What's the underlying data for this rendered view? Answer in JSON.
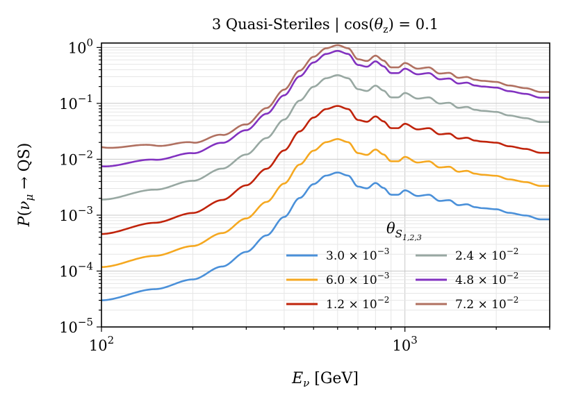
{
  "chart_data": {
    "type": "line",
    "title": "3 Quasi-Steriles | cos(θ_z) = 0.1",
    "xlabel": "E_ν [GeV]",
    "ylabel": "P(ν_μ → QS)",
    "xscale": "log",
    "yscale": "log",
    "xlim": [
      100,
      3000
    ],
    "ylim": [
      1e-05,
      1.2
    ],
    "x_ticks": [
      {
        "value": 100,
        "base": "10",
        "exp": "2"
      },
      {
        "value": 1000,
        "base": "10",
        "exp": "3"
      }
    ],
    "y_ticks": [
      {
        "value": 1e-05,
        "base": "10",
        "exp": "−5"
      },
      {
        "value": 0.0001,
        "base": "10",
        "exp": "−4"
      },
      {
        "value": 0.001,
        "base": "10",
        "exp": "−3"
      },
      {
        "value": 0.01,
        "base": "10",
        "exp": "−2"
      },
      {
        "value": 0.1,
        "base": "10",
        "exp": "−1"
      },
      {
        "value": 1,
        "base": "10",
        "exp": "0"
      }
    ],
    "grid": true,
    "legend": {
      "title": "θ",
      "title_sub": "S",
      "title_subsub": "1,2,3",
      "placement": "lower-right"
    },
    "shape_points_x": [
      100,
      150,
      200,
      250,
      300,
      350,
      400,
      450,
      500,
      550,
      600,
      650,
      700,
      750,
      800,
      850,
      900,
      950,
      1000,
      1100,
      1200,
      1300,
      1400,
      1500,
      1600,
      1700,
      1800,
      2000,
      2200,
      2500,
      2800,
      3000
    ],
    "shape_relative": [
      0.0055,
      0.0085,
      0.0125,
      0.021,
      0.038,
      0.075,
      0.16,
      0.35,
      0.62,
      0.88,
      1.0,
      0.88,
      0.56,
      0.52,
      0.65,
      0.53,
      0.4,
      0.4,
      0.48,
      0.38,
      0.4,
      0.31,
      0.32,
      0.26,
      0.27,
      0.24,
      0.23,
      0.22,
      0.19,
      0.17,
      0.145,
      0.145
    ],
    "series": [
      {
        "name": "3.0 × 10⁻³",
        "label_mant": "3.0 × 10",
        "label_exp": "−3",
        "color": "#4a90d9",
        "peak": 0.0058,
        "low_end": 3e-05
      },
      {
        "name": "6.0 × 10⁻³",
        "label_mant": "6.0 × 10",
        "label_exp": "−3",
        "color": "#f5a820",
        "peak": 0.023,
        "low_end": 0.000118
      },
      {
        "name": "1.2 × 10⁻²",
        "label_mant": "1.2 × 10",
        "label_exp": "−2",
        "color": "#c0230a",
        "peak": 0.09,
        "low_end": 0.00046
      },
      {
        "name": "2.4 × 10⁻²",
        "label_mant": "2.4 × 10",
        "label_exp": "−2",
        "color": "#98a8a2",
        "peak": 0.32,
        "low_end": 0.0019
      },
      {
        "name": "4.8 × 10⁻²",
        "label_mant": "4.8 × 10",
        "label_exp": "−2",
        "color": "#8232c0",
        "peak": 0.87,
        "low_end": 0.0075
      },
      {
        "name": "7.2 × 10⁻²",
        "label_mant": "7.2 × 10",
        "label_exp": "−2",
        "color": "#b07060",
        "peak": 1.1,
        "low_end": 0.0165
      }
    ]
  }
}
